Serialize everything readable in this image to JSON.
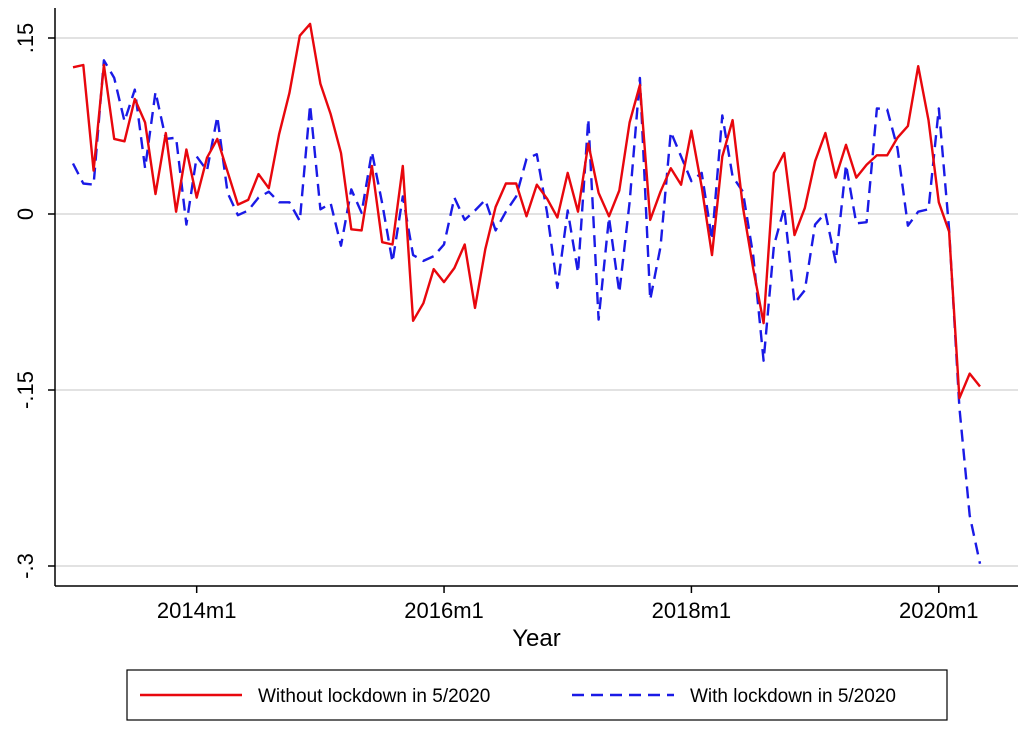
{
  "chart_data": {
    "type": "line",
    "title": "",
    "xlabel": "Year",
    "ylabel": "",
    "ylim": [
      -0.3,
      0.15
    ],
    "yticks": [
      {
        "value": 0.15,
        "label": ".15"
      },
      {
        "value": 0,
        "label": "0"
      },
      {
        "value": -0.15,
        "label": "-.15"
      },
      {
        "value": -0.3,
        "label": "-.3"
      }
    ],
    "xlim": [
      0,
      90
    ],
    "xticks": [
      {
        "value": 12,
        "label": "2014m1"
      },
      {
        "value": 36,
        "label": "2016m1"
      },
      {
        "value": 60,
        "label": "2018m1"
      },
      {
        "value": 84,
        "label": "2020m1"
      }
    ],
    "grid": true,
    "legend_position": "bottom",
    "x_description": "months since 2013m1",
    "series": [
      {
        "name": "Without lockdown in 5/2020",
        "color": "#e8070d",
        "dash": "solid",
        "x": [
          0,
          1,
          2,
          3,
          4,
          5,
          6,
          7,
          8,
          9,
          10,
          11,
          12,
          13,
          14,
          15,
          16,
          17,
          18,
          19,
          20,
          21,
          22,
          23,
          24,
          25,
          26,
          27,
          28,
          29,
          30,
          31,
          32,
          33,
          34,
          35,
          36,
          37,
          38,
          39,
          40,
          41,
          42,
          43,
          44,
          45,
          46,
          47,
          48,
          49,
          50,
          51,
          52,
          53,
          54,
          55,
          56,
          57,
          58,
          59,
          60,
          61,
          62,
          63,
          64,
          65,
          66,
          67,
          68,
          69,
          70,
          71,
          72,
          73,
          74,
          75,
          76,
          77,
          78,
          79,
          80,
          81,
          82,
          83,
          84,
          85,
          86,
          87,
          88
        ],
        "values": [
          0.125,
          0.127,
          0.037,
          0.127,
          0.064,
          0.062,
          0.098,
          0.078,
          0.017,
          0.069,
          0.002,
          0.055,
          0.014,
          0.048,
          0.064,
          0.036,
          0.008,
          0.012,
          0.034,
          0.022,
          0.068,
          0.103,
          0.152,
          0.162,
          0.111,
          0.085,
          0.052,
          -0.013,
          -0.014,
          0.041,
          -0.024,
          -0.026,
          0.041,
          -0.091,
          -0.076,
          -0.047,
          -0.058,
          -0.046,
          -0.026,
          -0.08,
          -0.03,
          0.006,
          0.026,
          0.026,
          -0.002,
          0.025,
          0.013,
          -0.003,
          0.035,
          0.002,
          0.06,
          0.018,
          -0.002,
          0.02,
          0.078,
          0.11,
          -0.005,
          0.019,
          0.039,
          0.025,
          0.071,
          0.023,
          -0.035,
          0.049,
          0.08,
          0.006,
          -0.047,
          -0.093,
          0.035,
          0.052,
          -0.018,
          0.005,
          0.045,
          0.069,
          0.031,
          0.059,
          0.031,
          0.042,
          0.05,
          0.05,
          0.065,
          0.075,
          0.126,
          0.08,
          0.01,
          -0.015,
          -0.157,
          -0.136,
          -0.147
        ]
      },
      {
        "name": "With lockdown in 5/2020",
        "color": "#1a1ae6",
        "dash": "dashed",
        "x": [
          0,
          1,
          2,
          3,
          4,
          5,
          6,
          7,
          8,
          9,
          10,
          11,
          12,
          13,
          14,
          15,
          16,
          17,
          18,
          19,
          20,
          21,
          22,
          23,
          24,
          25,
          26,
          27,
          28,
          29,
          30,
          31,
          32,
          33,
          34,
          35,
          36,
          37,
          38,
          39,
          40,
          41,
          42,
          43,
          44,
          45,
          46,
          47,
          48,
          49,
          50,
          51,
          52,
          53,
          54,
          55,
          56,
          57,
          58,
          59,
          60,
          61,
          62,
          63,
          64,
          65,
          66,
          67,
          68,
          69,
          70,
          71,
          72,
          73,
          74,
          75,
          76,
          77,
          78,
          79,
          80,
          81,
          82,
          83,
          84,
          85,
          86,
          87,
          88
        ],
        "values": [
          0.043,
          0.026,
          0.025,
          0.131,
          0.116,
          0.079,
          0.106,
          0.039,
          0.104,
          0.064,
          0.065,
          -0.009,
          0.049,
          0.037,
          0.083,
          0.018,
          -0.001,
          0.003,
          0.014,
          0.019,
          0.01,
          0.01,
          -0.006,
          0.093,
          0.004,
          0.009,
          -0.027,
          0.021,
          0.001,
          0.053,
          0.009,
          -0.041,
          0.015,
          -0.035,
          -0.04,
          -0.036,
          -0.026,
          0.014,
          -0.005,
          0.003,
          0.012,
          -0.014,
          0.002,
          0.015,
          0.047,
          0.051,
          0.001,
          -0.063,
          0.003,
          -0.05,
          0.081,
          -0.09,
          -0.003,
          -0.067,
          0.01,
          0.116,
          -0.073,
          -0.028,
          0.07,
          0.049,
          0.028,
          0.035,
          -0.022,
          0.084,
          0.032,
          0.019,
          -0.036,
          -0.125,
          -0.027,
          0.005,
          -0.076,
          -0.065,
          -0.009,
          0.001,
          -0.041,
          0.042,
          -0.008,
          -0.007,
          0.09,
          0.089,
          0.056,
          -0.01,
          0.002,
          0.004,
          0.09,
          -0.013,
          -0.165,
          -0.257,
          -0.298
        ]
      }
    ]
  }
}
